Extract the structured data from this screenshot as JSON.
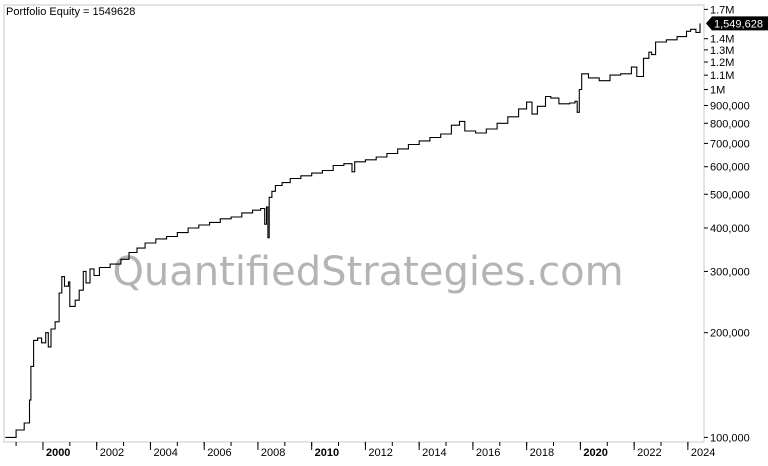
{
  "chart_data": {
    "type": "line",
    "title": "Portfolio Equity = 1549628",
    "watermark": "QuantifiedStrategies.com",
    "y_scale": "log",
    "ylim": [
      97000,
      1750000
    ],
    "xlim": [
      1998.55,
      2024.6
    ],
    "y_ticks": [
      {
        "value": 100000,
        "label": "100,000"
      },
      {
        "value": 200000,
        "label": "200,000"
      },
      {
        "value": 300000,
        "label": "300,000"
      },
      {
        "value": 400000,
        "label": "400,000"
      },
      {
        "value": 500000,
        "label": "500,000"
      },
      {
        "value": 600000,
        "label": "600,000"
      },
      {
        "value": 700000,
        "label": "700,000"
      },
      {
        "value": 800000,
        "label": "800,000"
      },
      {
        "value": 900000,
        "label": "900,000"
      },
      {
        "value": 1000000,
        "label": "1M"
      },
      {
        "value": 1100000,
        "label": "1.1M"
      },
      {
        "value": 1200000,
        "label": "1.2M"
      },
      {
        "value": 1300000,
        "label": "1.3M"
      },
      {
        "value": 1400000,
        "label": "1.4M"
      },
      {
        "value": 1700000,
        "label": "1.7M"
      }
    ],
    "x_ticks": [
      {
        "value": 2000,
        "label": "2000",
        "bold": true
      },
      {
        "value": 2002,
        "label": "2002",
        "bold": false
      },
      {
        "value": 2004,
        "label": "2004",
        "bold": false
      },
      {
        "value": 2006,
        "label": "2006",
        "bold": false
      },
      {
        "value": 2008,
        "label": "2008",
        "bold": false
      },
      {
        "value": 2010,
        "label": "2010",
        "bold": true
      },
      {
        "value": 2012,
        "label": "2012",
        "bold": false
      },
      {
        "value": 2014,
        "label": "2014",
        "bold": false
      },
      {
        "value": 2016,
        "label": "2016",
        "bold": false
      },
      {
        "value": 2018,
        "label": "2018",
        "bold": false
      },
      {
        "value": 2020,
        "label": "2020",
        "bold": true
      },
      {
        "value": 2022,
        "label": "2022",
        "bold": false
      },
      {
        "value": 2024,
        "label": "2024",
        "bold": false
      }
    ],
    "last_value": 1549628,
    "last_value_label": "1,549,628",
    "grid": false,
    "series": [
      {
        "values": [
          [
            1998.6,
            100000
          ],
          [
            1999.0,
            105000
          ],
          [
            1999.3,
            110000
          ],
          [
            1999.5,
            128000
          ],
          [
            1999.55,
            160000
          ],
          [
            1999.65,
            190000
          ],
          [
            1999.8,
            193000
          ],
          [
            1999.95,
            187000
          ],
          [
            2000.1,
            200000
          ],
          [
            2000.2,
            182000
          ],
          [
            2000.3,
            205000
          ],
          [
            2000.45,
            215000
          ],
          [
            2000.6,
            260000
          ],
          [
            2000.7,
            290000
          ],
          [
            2000.8,
            272000
          ],
          [
            2000.95,
            280000
          ],
          [
            2001.0,
            238000
          ],
          [
            2001.2,
            248000
          ],
          [
            2001.35,
            265000
          ],
          [
            2001.5,
            300000
          ],
          [
            2001.6,
            278000
          ],
          [
            2001.75,
            305000
          ],
          [
            2001.9,
            292000
          ],
          [
            2002.1,
            308000
          ],
          [
            2002.5,
            315000
          ],
          [
            2002.9,
            325000
          ],
          [
            2003.2,
            340000
          ],
          [
            2003.5,
            350000
          ],
          [
            2003.8,
            362000
          ],
          [
            2004.2,
            372000
          ],
          [
            2004.6,
            378000
          ],
          [
            2005.0,
            388000
          ],
          [
            2005.4,
            400000
          ],
          [
            2005.8,
            408000
          ],
          [
            2006.2,
            415000
          ],
          [
            2006.6,
            425000
          ],
          [
            2007.0,
            430000
          ],
          [
            2007.4,
            442000
          ],
          [
            2007.8,
            450000
          ],
          [
            2008.1,
            455000
          ],
          [
            2008.25,
            410000
          ],
          [
            2008.32,
            460000
          ],
          [
            2008.37,
            375000
          ],
          [
            2008.42,
            490000
          ],
          [
            2008.52,
            510000
          ],
          [
            2008.65,
            530000
          ],
          [
            2008.9,
            540000
          ],
          [
            2009.2,
            555000
          ],
          [
            2009.6,
            565000
          ],
          [
            2010.0,
            575000
          ],
          [
            2010.4,
            585000
          ],
          [
            2010.8,
            605000
          ],
          [
            2011.2,
            612000
          ],
          [
            2011.5,
            580000
          ],
          [
            2011.6,
            620000
          ],
          [
            2012.0,
            628000
          ],
          [
            2012.4,
            640000
          ],
          [
            2012.8,
            655000
          ],
          [
            2013.2,
            675000
          ],
          [
            2013.6,
            695000
          ],
          [
            2014.0,
            712000
          ],
          [
            2014.4,
            728000
          ],
          [
            2014.8,
            745000
          ],
          [
            2015.2,
            790000
          ],
          [
            2015.5,
            810000
          ],
          [
            2015.7,
            760000
          ],
          [
            2016.1,
            750000
          ],
          [
            2016.5,
            770000
          ],
          [
            2016.9,
            800000
          ],
          [
            2017.3,
            835000
          ],
          [
            2017.7,
            880000
          ],
          [
            2018.0,
            920000
          ],
          [
            2018.2,
            850000
          ],
          [
            2018.4,
            895000
          ],
          [
            2018.7,
            955000
          ],
          [
            2018.9,
            945000
          ],
          [
            2019.2,
            910000
          ],
          [
            2019.6,
            915000
          ],
          [
            2019.8,
            925000
          ],
          [
            2019.88,
            860000
          ],
          [
            2019.96,
            1000000
          ],
          [
            2020.05,
            1110000
          ],
          [
            2020.3,
            1080000
          ],
          [
            2020.7,
            1060000
          ],
          [
            2021.1,
            1100000
          ],
          [
            2021.5,
            1110000
          ],
          [
            2021.9,
            1160000
          ],
          [
            2022.1,
            1090000
          ],
          [
            2022.35,
            1230000
          ],
          [
            2022.55,
            1280000
          ],
          [
            2022.65,
            1260000
          ],
          [
            2022.8,
            1370000
          ],
          [
            2023.2,
            1390000
          ],
          [
            2023.6,
            1420000
          ],
          [
            2023.95,
            1470000
          ],
          [
            2024.1,
            1490000
          ],
          [
            2024.3,
            1460000
          ],
          [
            2024.45,
            1549628
          ]
        ]
      }
    ]
  }
}
